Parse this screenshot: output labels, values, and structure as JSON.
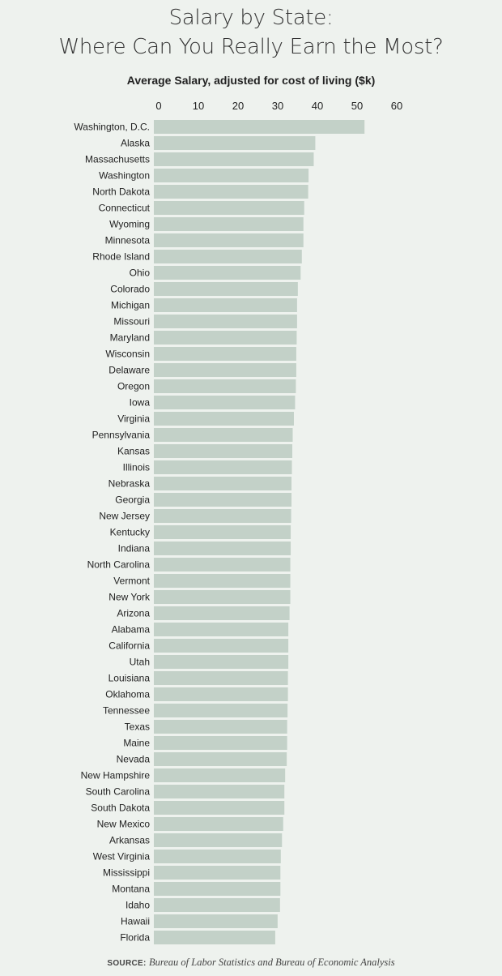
{
  "chart_data": {
    "type": "bar",
    "orientation": "horizontal",
    "title": [
      "Salary by State:",
      "Where Can You Really Earn the Most?"
    ],
    "subtitle": "Average Salary, adjusted for cost of living ($k)",
    "xlim": [
      0,
      60
    ],
    "xticks": [
      0,
      10,
      20,
      30,
      40,
      50,
      60
    ],
    "grid": false,
    "bar_color": "#c3d1c8",
    "categories": [
      "Washington, D.C.",
      "Alaska",
      "Massachusetts",
      "Washington",
      "North Dakota",
      "Connecticut",
      "Wyoming",
      "Minnesota",
      "Rhode Island",
      "Ohio",
      "Colorado",
      "Michigan",
      "Missouri",
      "Maryland",
      "Wisconsin",
      "Delaware",
      "Oregon",
      "Iowa",
      "Virginia",
      "Pennsylvania",
      "Kansas",
      "Illinois",
      "Nebraska",
      "Georgia",
      "New Jersey",
      "Kentucky",
      "Indiana",
      "North Carolina",
      "Vermont",
      "New York",
      "Arizona",
      "Alabama",
      "California",
      "Utah",
      "Louisiana",
      "Oklahoma",
      "Tennessee",
      "Texas",
      "Maine",
      "Nevada",
      "New Hampshire",
      "South Carolina",
      "South Dakota",
      "New Mexico",
      "Arkansas",
      "West Virginia",
      "Mississippi",
      "Montana",
      "Idaho",
      "Hawaii",
      "Florida"
    ],
    "values": [
      53.1,
      40.7,
      40.3,
      39.0,
      38.9,
      37.9,
      37.7,
      37.7,
      37.3,
      37.0,
      36.3,
      36.1,
      36.1,
      36.0,
      35.9,
      35.9,
      35.8,
      35.6,
      35.3,
      35.0,
      34.9,
      34.8,
      34.7,
      34.7,
      34.6,
      34.5,
      34.5,
      34.4,
      34.4,
      34.4,
      34.2,
      33.9,
      33.9,
      33.9,
      33.8,
      33.8,
      33.7,
      33.6,
      33.6,
      33.5,
      33.1,
      32.9,
      32.9,
      32.6,
      32.3,
      32.0,
      31.9,
      31.9,
      31.8,
      31.2,
      30.6
    ]
  },
  "source": {
    "label": "SOURCE:",
    "text": "Bureau of Labor Statistics and Bureau of Economic Analysis"
  }
}
